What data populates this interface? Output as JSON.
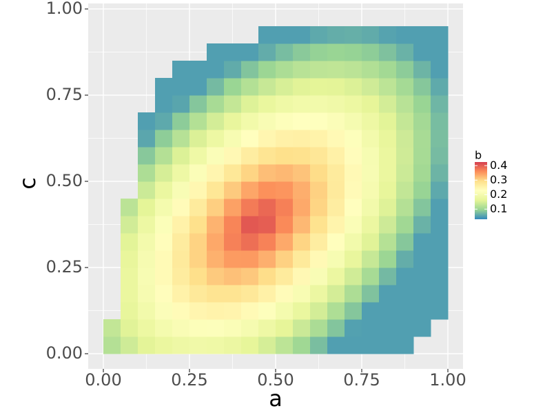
{
  "chart_data": {
    "type": "heatmap",
    "x_label": "a",
    "y_label": "c",
    "legend_title": "b",
    "x": [
      0.025,
      0.075,
      0.125,
      0.175,
      0.225,
      0.275,
      0.325,
      0.375,
      0.425,
      0.475,
      0.525,
      0.575,
      0.625,
      0.675,
      0.725,
      0.775,
      0.825,
      0.875,
      0.925,
      0.975
    ],
    "y": [
      0.025,
      0.075,
      0.125,
      0.175,
      0.225,
      0.275,
      0.325,
      0.375,
      0.425,
      0.475,
      0.525,
      0.575,
      0.625,
      0.675,
      0.725,
      0.775,
      0.825,
      0.875,
      0.925
    ],
    "z": [
      [
        0.119,
        0.141,
        0.16,
        0.174,
        0.184,
        0.188,
        0.185,
        0.178,
        0.165,
        0.147,
        0.126,
        0.102,
        0.076,
        0.05,
        0.05,
        0.05,
        0.05,
        0.05,
        null,
        null
      ],
      [
        0.131,
        0.157,
        0.179,
        0.198,
        0.211,
        0.219,
        0.22,
        0.214,
        0.202,
        0.184,
        0.163,
        0.138,
        0.111,
        0.082,
        0.051,
        0.05,
        0.05,
        0.05,
        0.05,
        null
      ],
      [
        null,
        0.168,
        0.194,
        0.217,
        0.236,
        0.248,
        0.253,
        0.25,
        0.239,
        0.222,
        0.199,
        0.173,
        0.145,
        0.114,
        0.083,
        0.05,
        0.05,
        0.05,
        0.05,
        0.05
      ],
      [
        null,
        0.174,
        0.204,
        0.231,
        0.255,
        0.274,
        0.284,
        0.285,
        0.276,
        0.258,
        0.235,
        0.208,
        0.178,
        0.146,
        0.113,
        0.08,
        0.05,
        0.05,
        0.05,
        0.05
      ],
      [
        null,
        0.174,
        0.207,
        0.239,
        0.268,
        0.293,
        0.311,
        0.319,
        0.312,
        0.295,
        0.27,
        0.242,
        0.21,
        0.177,
        0.143,
        0.108,
        0.072,
        0.05,
        0.05,
        0.05
      ],
      [
        null,
        0.169,
        0.204,
        0.239,
        0.272,
        0.304,
        0.331,
        0.348,
        0.349,
        0.332,
        0.305,
        0.273,
        0.24,
        0.205,
        0.17,
        0.134,
        0.098,
        0.062,
        0.05,
        0.05
      ],
      [
        null,
        0.159,
        0.195,
        0.232,
        0.268,
        0.304,
        0.338,
        0.369,
        0.384,
        0.368,
        0.337,
        0.302,
        0.266,
        0.23,
        0.194,
        0.157,
        0.12,
        0.084,
        0.05,
        0.05
      ],
      [
        null,
        0.144,
        0.181,
        0.218,
        0.255,
        0.292,
        0.329,
        0.366,
        0.403,
        0.398,
        0.362,
        0.325,
        0.288,
        0.251,
        0.214,
        0.177,
        0.14,
        0.103,
        0.066,
        0.05
      ],
      [
        null,
        0.125,
        0.161,
        0.198,
        0.235,
        0.271,
        0.307,
        0.343,
        0.374,
        0.39,
        0.37,
        0.337,
        0.302,
        0.266,
        0.229,
        0.193,
        0.156,
        0.119,
        0.082,
        0.05
      ],
      [
        null,
        null,
        0.139,
        0.175,
        0.21,
        0.245,
        0.279,
        0.311,
        0.339,
        0.356,
        0.353,
        0.333,
        0.305,
        0.272,
        0.238,
        0.203,
        0.167,
        0.131,
        0.095,
        0.058
      ],
      [
        null,
        null,
        0.113,
        0.148,
        0.183,
        0.216,
        0.248,
        0.277,
        0.302,
        0.32,
        0.325,
        0.316,
        0.296,
        0.27,
        0.24,
        0.207,
        0.174,
        0.139,
        0.104,
        0.068
      ],
      [
        null,
        null,
        0.085,
        0.119,
        0.153,
        0.185,
        0.215,
        0.242,
        0.265,
        0.283,
        0.292,
        0.29,
        0.278,
        0.258,
        0.233,
        0.205,
        0.174,
        0.142,
        0.108,
        0.074
      ],
      [
        null,
        null,
        0.056,
        0.089,
        0.121,
        0.152,
        0.18,
        0.206,
        0.229,
        0.246,
        0.257,
        0.259,
        0.254,
        0.24,
        0.221,
        0.196,
        0.169,
        0.14,
        0.109,
        0.076
      ],
      [
        null,
        null,
        0.05,
        0.058,
        0.088,
        0.118,
        0.145,
        0.17,
        0.192,
        0.209,
        0.221,
        0.227,
        0.225,
        0.216,
        0.202,
        0.182,
        0.159,
        0.133,
        0.105,
        0.075
      ],
      [
        null,
        null,
        null,
        0.05,
        0.055,
        0.083,
        0.109,
        0.133,
        0.155,
        0.172,
        0.185,
        0.192,
        0.194,
        0.189,
        0.179,
        0.164,
        0.145,
        0.122,
        0.096,
        0.069
      ],
      [
        null,
        null,
        null,
        0.05,
        0.05,
        0.05,
        0.073,
        0.097,
        0.118,
        0.135,
        0.149,
        0.158,
        0.161,
        0.16,
        0.153,
        0.142,
        0.126,
        0.106,
        0.084,
        0.059
      ],
      [
        null,
        null,
        null,
        null,
        0.05,
        0.05,
        0.05,
        0.06,
        0.081,
        0.098,
        0.112,
        0.122,
        0.127,
        0.128,
        0.125,
        0.116,
        0.104,
        0.088,
        0.068,
        0.05
      ],
      [
        null,
        null,
        null,
        null,
        null,
        null,
        0.05,
        0.05,
        0.05,
        0.061,
        0.075,
        0.086,
        0.093,
        0.096,
        0.094,
        0.089,
        0.079,
        0.066,
        0.05,
        0.05
      ],
      [
        null,
        null,
        null,
        null,
        null,
        null,
        null,
        null,
        null,
        0.05,
        0.05,
        0.05,
        0.058,
        0.062,
        0.063,
        0.06,
        0.053,
        0.05,
        0.05,
        0.05
      ]
    ],
    "colors": [
      "#3288BD",
      "#99D594",
      "#E6F598",
      "#FFFFBF",
      "#FEE08B",
      "#FC8D59",
      "#D53E4F"
    ],
    "zlim": [
      0.03,
      0.425
    ],
    "zticks": [
      0.1,
      0.2,
      0.3,
      0.4
    ],
    "xlim": [
      -0.044,
      1.044
    ],
    "ylim": [
      -0.044,
      1.016
    ],
    "xticks": [
      {
        "value": 0,
        "label": "0.00"
      },
      {
        "value": 0.25,
        "label": "0.25"
      },
      {
        "value": 0.5,
        "label": "0.50"
      },
      {
        "value": 0.75,
        "label": "0.75"
      },
      {
        "value": 1,
        "label": "1.00"
      }
    ],
    "yticks": [
      {
        "value": 0,
        "label": "0.00"
      },
      {
        "value": 0.25,
        "label": "0.25"
      },
      {
        "value": 0.5,
        "label": "0.50"
      },
      {
        "value": 0.75,
        "label": "0.75"
      },
      {
        "value": 1,
        "label": "1.00"
      }
    ],
    "grid": true
  }
}
